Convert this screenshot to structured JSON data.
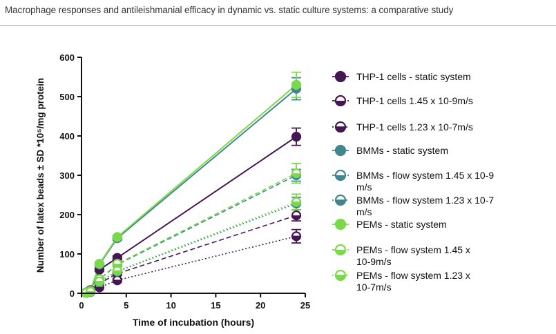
{
  "header": {
    "title": "Macrophage responses and antileishmanial efficacy in dynamic vs. static culture systems: a comparative study"
  },
  "chart_data": {
    "type": "line",
    "xlabel": "Time of incubation (hours)",
    "ylabel": "Number of latex beads ± SD *10⁵/mg protein",
    "xlim": [
      0,
      25
    ],
    "ylim": [
      0,
      600
    ],
    "xticks": [
      "0",
      "5",
      "10",
      "15",
      "20",
      "25"
    ],
    "yticks": [
      "0",
      "100",
      "200",
      "300",
      "400",
      "500",
      "600"
    ],
    "x": [
      0.5,
      1,
      2,
      4,
      24
    ],
    "legend_position": "right",
    "series": [
      {
        "name": "THP-1 cells - static system",
        "legend_lines": [
          "THP-1 cells - static system"
        ],
        "color": "#441653",
        "line": "solid",
        "marker": "filled",
        "values": [
          2,
          8,
          60,
          90,
          398
        ],
        "err": [
          2,
          3,
          4,
          5,
          22
        ]
      },
      {
        "name": "THP-1 cells 1.45 x 10-9m/s",
        "legend_lines": [
          "THP-1 cells 1.45 x 10-9m/s"
        ],
        "color": "#441653",
        "line": "dashed",
        "marker": "half",
        "values": [
          1,
          4,
          25,
          50,
          198
        ],
        "err": [
          1,
          2,
          3,
          4,
          14
        ]
      },
      {
        "name": "THP-1 cells 1.23 x 10-7m/s",
        "legend_lines": [
          "THP-1 cells 1.23 x 10-7m/s"
        ],
        "color": "#441653",
        "line": "dotted",
        "marker": "half-open",
        "values": [
          1,
          3,
          15,
          33,
          145
        ],
        "err": [
          1,
          2,
          3,
          4,
          17
        ]
      },
      {
        "name": "BMMs - static system",
        "legend_lines": [
          "BMMs - static system"
        ],
        "color": "#3f868f",
        "line": "solid",
        "marker": "filled",
        "values": [
          2,
          6,
          73,
          140,
          520
        ],
        "err": [
          2,
          3,
          4,
          5,
          28
        ]
      },
      {
        "name": "BMMs - flow system 1.45 x 10-9 m/s",
        "legend_lines": [
          "BMMs - flow system 1.45 x 10-9",
          "m/s"
        ],
        "color": "#3f868f",
        "line": "dashed",
        "marker": "half",
        "values": [
          1,
          5,
          35,
          73,
          300
        ],
        "err": [
          1,
          2,
          3,
          4,
          15
        ]
      },
      {
        "name": "BMMs - flow system 1.23 x 10-7 m/s",
        "legend_lines": [
          "BMMs - flow system 1.23 x 10-7",
          "m/s"
        ],
        "color": "#3f868f",
        "line": "dotted",
        "marker": "half-open",
        "values": [
          1,
          4,
          28,
          55,
          228
        ],
        "err": [
          1,
          2,
          3,
          4,
          16
        ]
      },
      {
        "name": "PEMs - static system",
        "legend_lines": [
          "PEMs - static system"
        ],
        "color": "#7ad94b",
        "line": "solid",
        "marker": "filled",
        "values": [
          2,
          6,
          75,
          143,
          530
        ],
        "err": [
          2,
          3,
          4,
          5,
          32
        ]
      },
      {
        "name": "PEMs - flow system 1.45 x 10-9m/s",
        "legend_lines": [
          "PEMs - flow system 1.45 x",
          "10-9m/s"
        ],
        "color": "#7ad94b",
        "line": "dashed",
        "marker": "half",
        "values": [
          1,
          5,
          36,
          75,
          305
        ],
        "err": [
          1,
          2,
          3,
          4,
          25
        ]
      },
      {
        "name": "PEMs - flow system 1.23 x 10-7m/s",
        "legend_lines": [
          "PEMs - flow system 1.23 x",
          "10-7m/s"
        ],
        "color": "#7ad94b",
        "line": "dotted",
        "marker": "half-open",
        "values": [
          1,
          4,
          30,
          57,
          232
        ],
        "err": [
          1,
          2,
          3,
          4,
          20
        ]
      }
    ]
  }
}
